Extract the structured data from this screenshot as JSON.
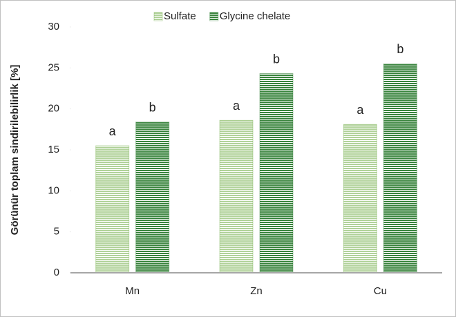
{
  "chart_data": {
    "type": "bar",
    "y_label": "Görünür toplam sindirilebilirlik [%]",
    "categories": [
      "Mn",
      "Zn",
      "Cu"
    ],
    "series": [
      {
        "name": "Sulfate",
        "color": "#70ad47",
        "values": [
          15.5,
          18.6,
          18.1
        ],
        "letters": [
          "a",
          "a",
          "a"
        ]
      },
      {
        "name": "Glycine chelate",
        "color": "#2e7d32",
        "values": [
          18.4,
          24.3,
          25.5
        ],
        "letters": [
          "b",
          "b",
          "b"
        ]
      }
    ],
    "ylim": [
      0,
      30
    ],
    "yticks": [
      0,
      5,
      10,
      15,
      20,
      25,
      30
    ],
    "grid": false
  }
}
